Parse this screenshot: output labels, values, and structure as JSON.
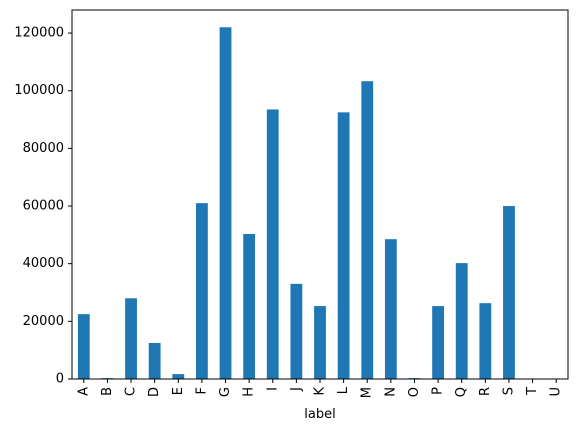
{
  "chart_data": {
    "type": "bar",
    "categories": [
      "A",
      "B",
      "C",
      "D",
      "E",
      "F",
      "G",
      "H",
      "I",
      "J",
      "K",
      "L",
      "M",
      "N",
      "O",
      "P",
      "Q",
      "R",
      "S",
      "T",
      "U"
    ],
    "values": [
      22500,
      300,
      28000,
      12500,
      1700,
      61000,
      122000,
      50300,
      93500,
      33000,
      25300,
      92500,
      103300,
      48500,
      300,
      25300,
      40200,
      26300,
      60000,
      0,
      0
    ],
    "xlabel": "label",
    "ylabel": "",
    "ylim": [
      0,
      128000
    ],
    "yticks": [
      0,
      20000,
      40000,
      60000,
      80000,
      100000,
      120000
    ],
    "grid": false,
    "bar_color": "#1f77b4"
  }
}
